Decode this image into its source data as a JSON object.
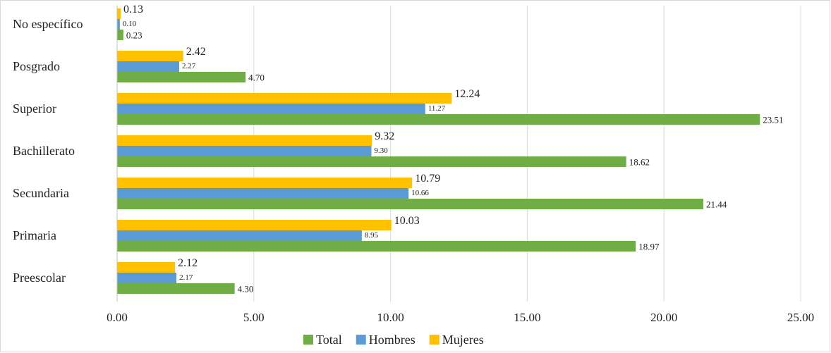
{
  "chart_data": {
    "type": "bar",
    "orientation": "horizontal",
    "categories": [
      "No específico",
      "Posgrado",
      "Superior",
      "Bachillerato",
      "Secundaria",
      "Primaria",
      "Preescolar"
    ],
    "series": [
      {
        "name": "Mujeres",
        "color": "#ffc000",
        "values": [
          0.13,
          2.42,
          12.24,
          9.32,
          10.79,
          10.03,
          2.12
        ],
        "value_labels": [
          "0.13",
          "2.42",
          "12.24",
          "9.32",
          "10.79",
          "10.03",
          "2.12"
        ]
      },
      {
        "name": "Hombres",
        "color": "#5b9bd5",
        "values": [
          0.1,
          2.27,
          11.27,
          9.3,
          10.66,
          8.95,
          2.17
        ],
        "value_labels": [
          "0.10",
          "2.27",
          "11.27",
          "9.30",
          "10.66",
          "8.95",
          "2.17"
        ]
      },
      {
        "name": "Total",
        "color": "#70ad47",
        "values": [
          0.23,
          4.7,
          23.51,
          18.62,
          21.44,
          18.97,
          4.3
        ],
        "value_labels": [
          "0.23",
          "4.70",
          "23.51",
          "18.62",
          "21.44",
          "18.97",
          "4.30"
        ]
      }
    ],
    "xlim": [
      0,
      25
    ],
    "xticks": [
      {
        "value": 0,
        "label": "0.00"
      },
      {
        "value": 5,
        "label": "5.00"
      },
      {
        "value": 10,
        "label": "10.00"
      },
      {
        "value": 15,
        "label": "15.00"
      },
      {
        "value": 20,
        "label": "20.00"
      },
      {
        "value": 25,
        "label": "25.00"
      }
    ],
    "grid": true,
    "legend": "bottom"
  }
}
